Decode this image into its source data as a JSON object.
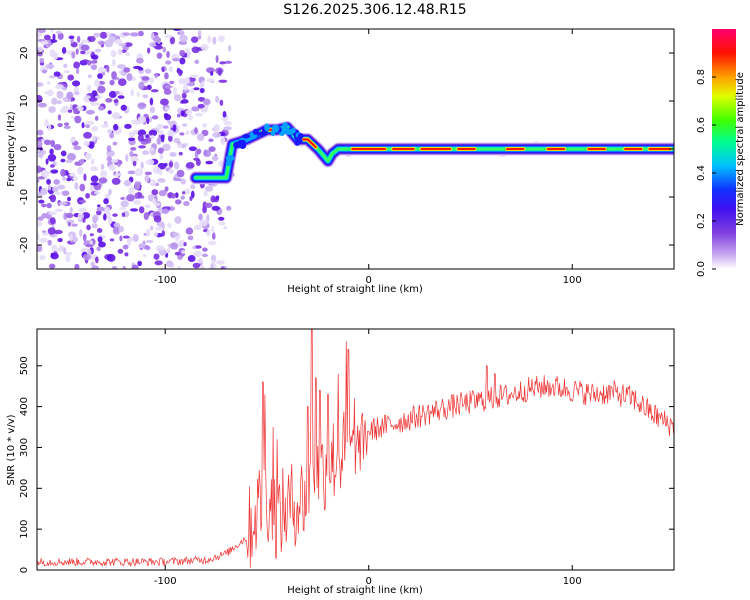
{
  "chart_data": [
    {
      "type": "heatmap",
      "title": "S126.2025.306.12.48.R15",
      "xlabel": "Height of straight line (km)",
      "ylabel": "Frequency (Hz)",
      "xlim": [
        -163,
        150
      ],
      "ylim": [
        -25,
        25
      ],
      "xticks": [
        -100,
        0,
        100
      ],
      "yticks": [
        -20,
        -10,
        0,
        10,
        20
      ],
      "colorbar": {
        "label": "Normalized spectral amplitude",
        "ticks": [
          0.0,
          0.2,
          0.4,
          0.6,
          0.8
        ],
        "range": [
          0,
          1
        ],
        "colormap": [
          "#ffffff",
          "#a070e0",
          "#6010e0",
          "#1010ff",
          "#00c0ff",
          "#00ff80",
          "#60ff00",
          "#ffff00",
          "#ff8000",
          "#ff0000",
          "#ff0080"
        ]
      },
      "ridge": {
        "height_km": [
          -85,
          -80,
          -75,
          -70,
          -67,
          -63,
          -60,
          -55,
          -50,
          -45,
          -40,
          -35,
          -30,
          -25,
          -22,
          -20,
          -18,
          -15,
          -10,
          0,
          20,
          40,
          60,
          80,
          100,
          120,
          150
        ],
        "frequency_hz": [
          -6,
          -6,
          -6,
          -6,
          1,
          1.5,
          2,
          3,
          4,
          4,
          4.5,
          2,
          2,
          0,
          -1.5,
          -2.5,
          -1,
          0,
          0,
          0,
          0,
          0,
          0,
          0,
          0,
          0,
          0
        ]
      }
    },
    {
      "type": "line",
      "xlabel": "Height of straight line (km)",
      "ylabel": "SNR (10 * v/v)",
      "xlim": [
        -163,
        150
      ],
      "ylim": [
        0,
        590
      ],
      "xticks": [
        -100,
        0,
        100
      ],
      "yticks": [
        0,
        100,
        200,
        300,
        400,
        500
      ],
      "line_color": "#ee3333",
      "trend": {
        "height_km": [
          -163,
          -100,
          -80,
          -70,
          -60,
          -55,
          -50,
          -45,
          -40,
          -35,
          -30,
          -25,
          -20,
          -15,
          -10,
          -5,
          0,
          20,
          40,
          60,
          70,
          80,
          90,
          100,
          110,
          120,
          130,
          140,
          150
        ],
        "snr": [
          20,
          20,
          25,
          40,
          80,
          150,
          180,
          130,
          150,
          170,
          180,
          230,
          260,
          280,
          290,
          300,
          340,
          370,
          400,
          420,
          430,
          445,
          450,
          440,
          430,
          435,
          420,
          380,
          350
        ]
      }
    }
  ]
}
